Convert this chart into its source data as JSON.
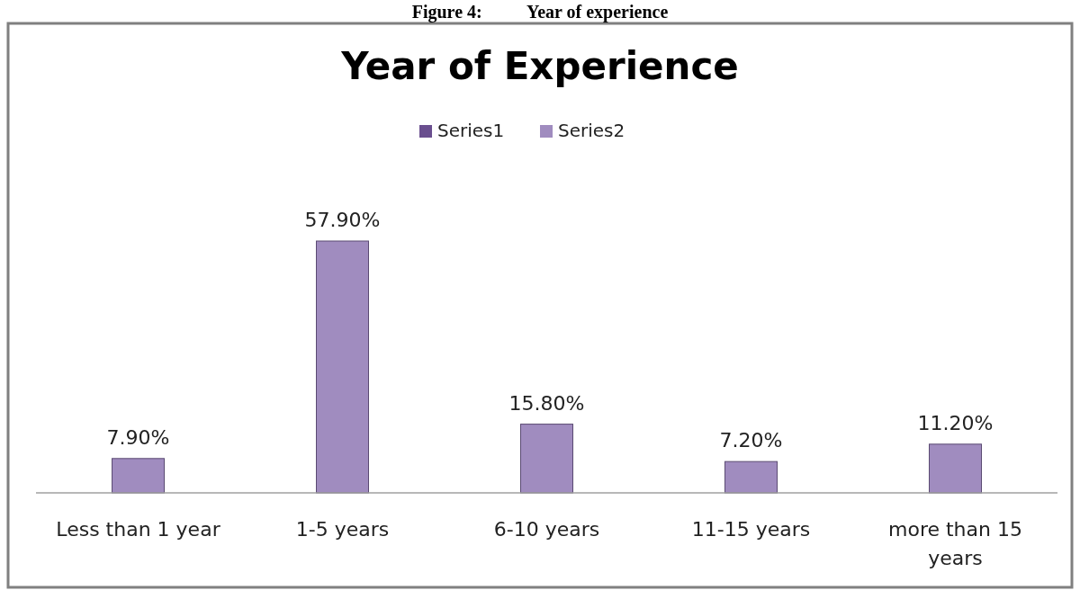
{
  "chart_data": {
    "type": "bar",
    "title": "Year of Experience",
    "annotations": [
      "Figure 4:          Year of experience"
    ],
    "categories": [
      "Less than 1 year",
      "1-5 years",
      "6-10 years",
      "11-15 years",
      "more than 15 years"
    ],
    "series": [
      {
        "name": "Series1",
        "color": "#6a4f8f",
        "values": [
          null,
          null,
          null,
          null,
          null
        ]
      },
      {
        "name": "Series2",
        "color": "#a08cbf",
        "values": [
          7.9,
          57.9,
          15.8,
          7.2,
          11.2
        ],
        "value_labels": [
          "7.90%",
          "57.90%",
          "15.80%",
          "7.20%",
          "11.20%"
        ]
      }
    ],
    "legend": "top"
  }
}
